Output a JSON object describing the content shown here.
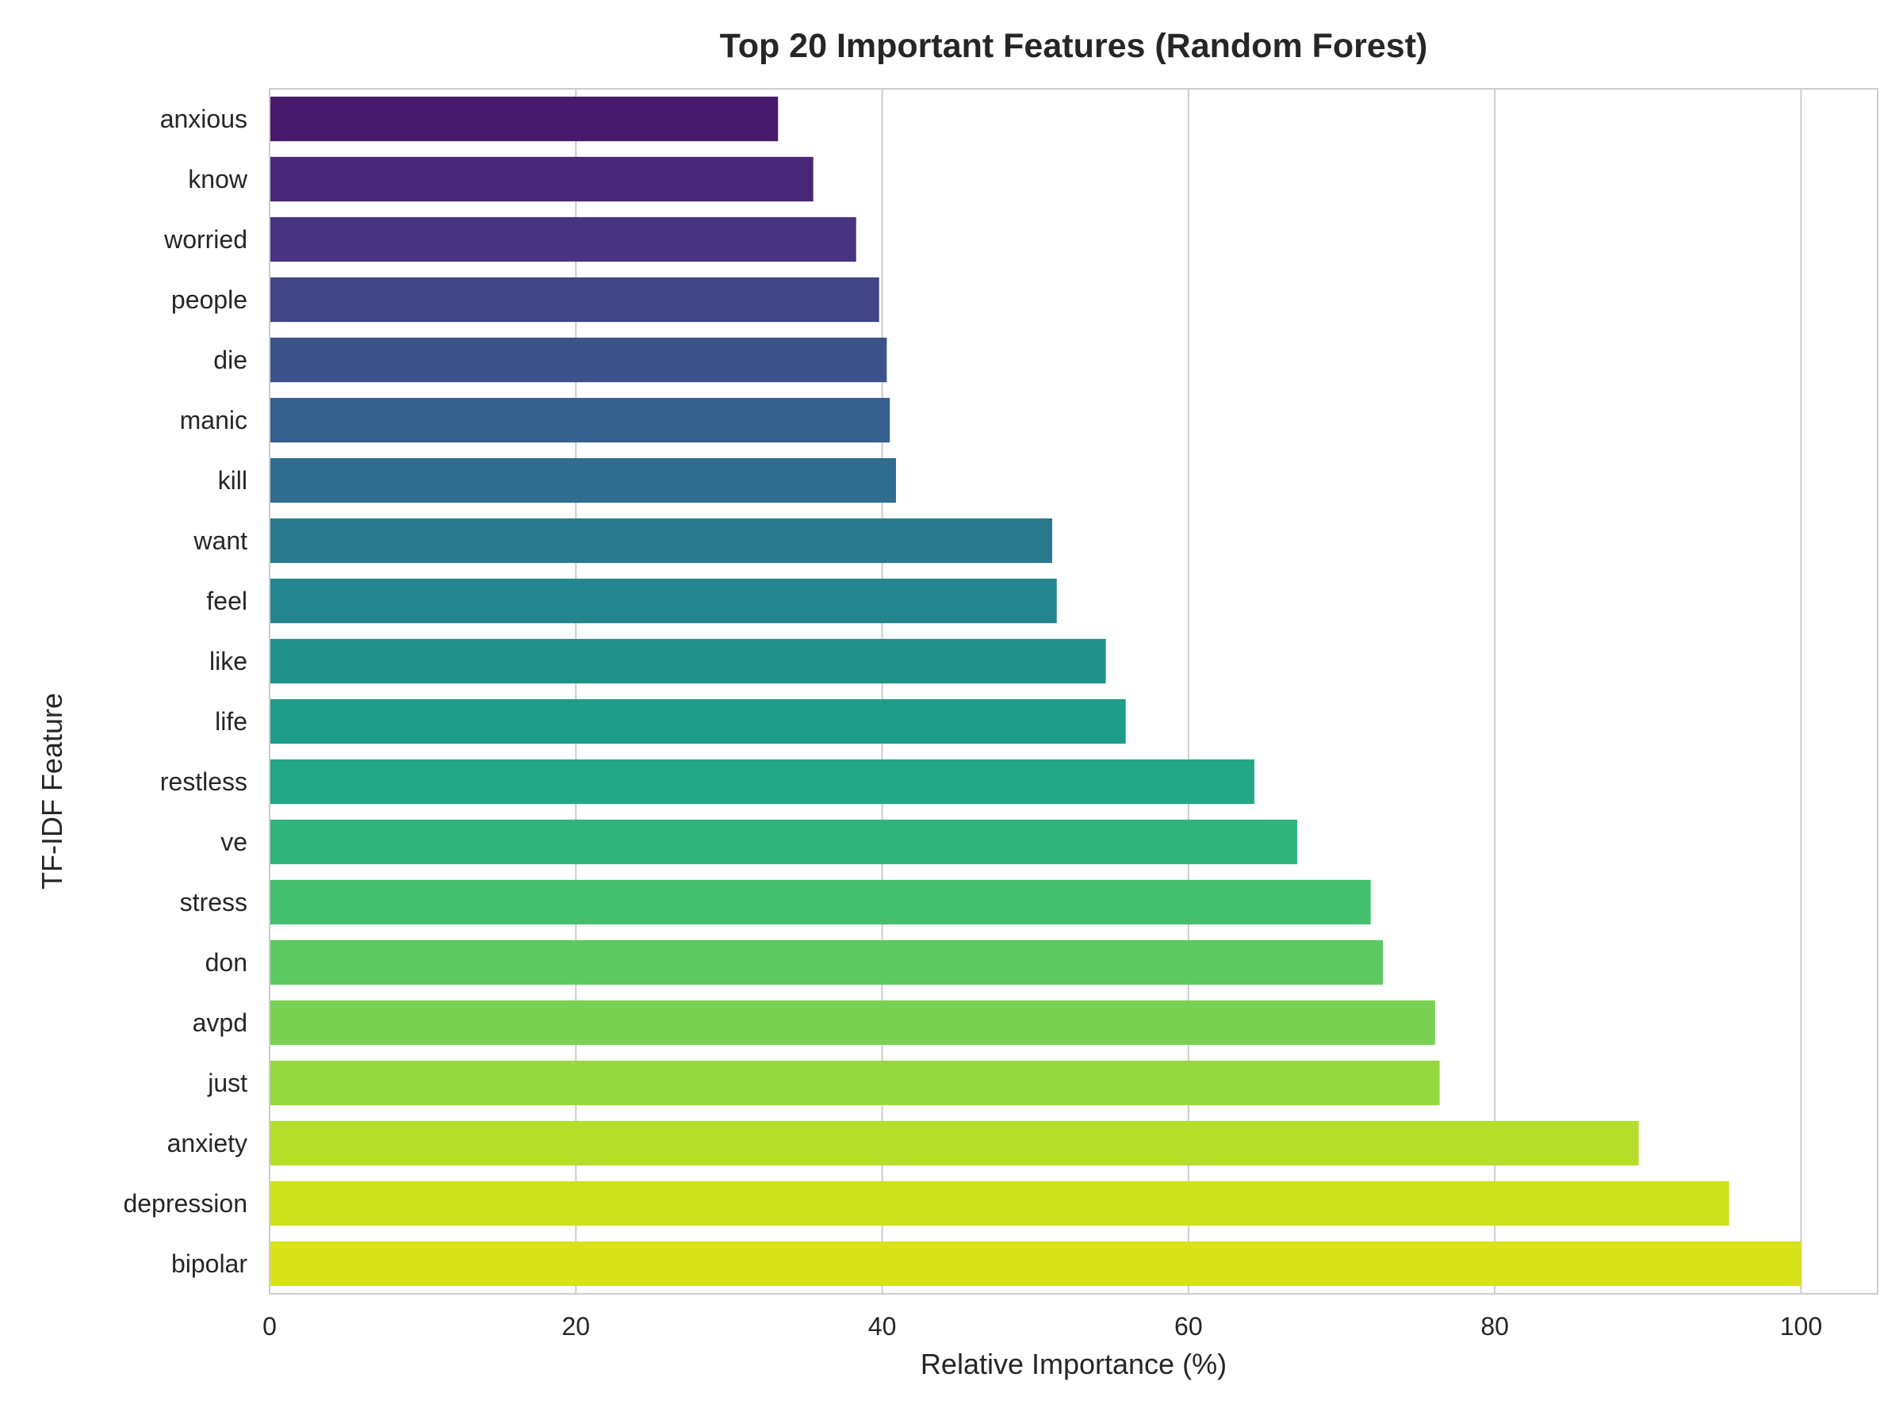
{
  "chart_data": {
    "type": "bar",
    "orientation": "horizontal",
    "title": "Top 20 Important Features (Random Forest)",
    "xlabel": "Relative Importance (%)",
    "ylabel": "TF-IDF Feature",
    "xlim": [
      0,
      105
    ],
    "xticks": [
      0,
      20,
      40,
      60,
      80,
      100
    ],
    "grid": true,
    "palette": "viridis",
    "categories": [
      "anxious",
      "know",
      "worried",
      "people",
      "die",
      "manic",
      "kill",
      "want",
      "feel",
      "like",
      "life",
      "restless",
      "ve",
      "stress",
      "don",
      "avpd",
      "just",
      "anxiety",
      "depression",
      "bipolar"
    ],
    "values": [
      33.2,
      35.5,
      38.3,
      39.8,
      40.3,
      40.5,
      40.9,
      51.1,
      51.4,
      54.6,
      55.9,
      64.3,
      67.1,
      71.9,
      72.7,
      76.1,
      76.4,
      89.4,
      95.3,
      100.0
    ],
    "colors": [
      "#481a6c",
      "#482878",
      "#463480",
      "#414487",
      "#3b528b",
      "#355f8d",
      "#2f6c8e",
      "#2a788e",
      "#25858e",
      "#21918c",
      "#1e9c89",
      "#22a884",
      "#2fb47c",
      "#44bf70",
      "#5ec962",
      "#7ad151",
      "#95d840",
      "#b5de2b",
      "#cde11d",
      "#d8e219"
    ]
  }
}
